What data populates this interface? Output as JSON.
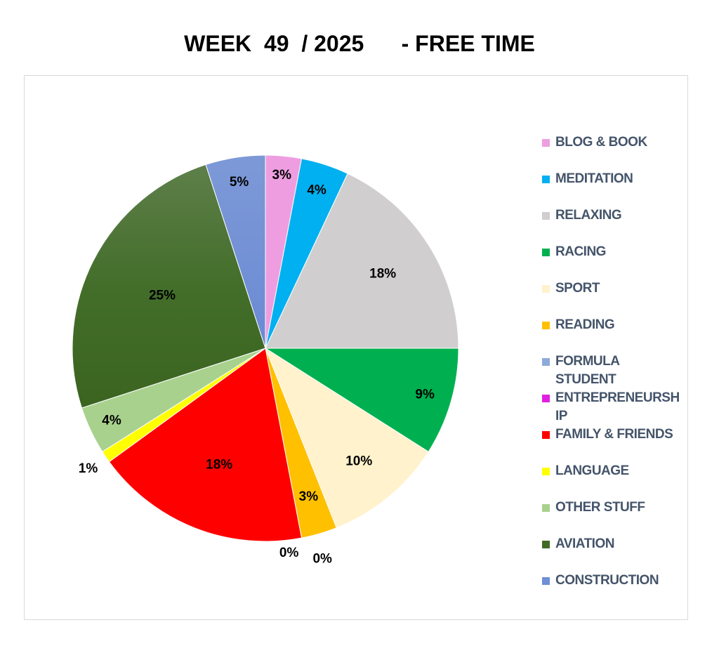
{
  "chart_data": {
    "type": "pie",
    "title": "WEEK  49  / 2025      - FREE TIME",
    "start_angle_deg": 0,
    "direction": "clockwise",
    "legend_position": "right",
    "slices": [
      {
        "name": "BLOG & BOOK",
        "value": 3,
        "label": "3%",
        "color": "#ee9ee0"
      },
      {
        "name": "MEDITATION",
        "value": 4,
        "label": "4%",
        "color": "#00b0f0"
      },
      {
        "name": "RELAXING",
        "value": 18,
        "label": "18%",
        "color": "#d0cece"
      },
      {
        "name": "RACING",
        "value": 9,
        "label": "9%",
        "color": "#00b050"
      },
      {
        "name": "SPORT",
        "value": 10,
        "label": "10%",
        "color": "#fff2cc"
      },
      {
        "name": "READING",
        "value": 3,
        "label": "3%",
        "color": "#ffc000"
      },
      {
        "name": "FORMULA STUDENT",
        "value": 0,
        "label": "0%",
        "color": "#8eaadb"
      },
      {
        "name": "ENTREPRENEURSHIP",
        "value": 0,
        "label": "0%",
        "color": "#e020e0"
      },
      {
        "name": "FAMILY & FRIENDS",
        "value": 18,
        "label": "18%",
        "color": "#ff0000"
      },
      {
        "name": "LANGUAGE",
        "value": 1,
        "label": "1%",
        "color": "#ffff00"
      },
      {
        "name": "OTHER STUFF",
        "value": 4,
        "label": "4%",
        "color": "#a9d18e"
      },
      {
        "name": "AVIATION",
        "value": 25,
        "label": "25%",
        "color": "#3f6b24"
      },
      {
        "name": "CONSTRUCTION",
        "value": 5,
        "label": "5%",
        "color": "#6f8fd6"
      }
    ],
    "legend_labels": [
      "BLOG & BOOK",
      "MEDITATION",
      "RELAXING",
      "RACING",
      "SPORT",
      "READING",
      "FORMULA STUDENT",
      "ENTREPRENEURSH IP",
      "FAMILY & FRIENDS",
      "LANGUAGE",
      "OTHER STUFF",
      "AVIATION",
      "CONSTRUCTION"
    ]
  }
}
